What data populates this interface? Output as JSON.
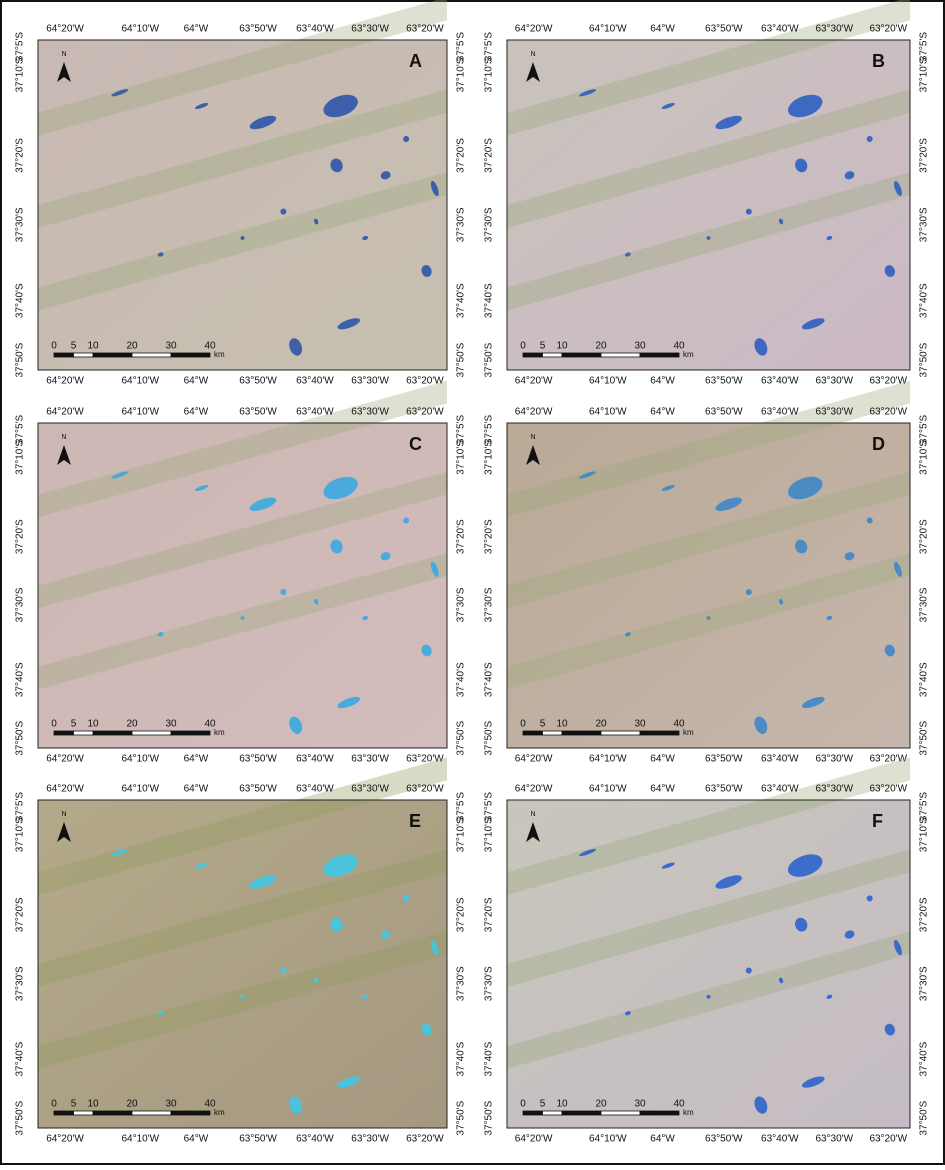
{
  "panels": [
    {
      "label": "A"
    },
    {
      "label": "B"
    },
    {
      "label": "C"
    },
    {
      "label": "D"
    },
    {
      "label": "E"
    },
    {
      "label": "F"
    }
  ],
  "longitudes": [
    "64°20'W",
    "64°10'W",
    "64°W",
    "63°50'W",
    "63°40'W",
    "63°30'W",
    "63°20'W"
  ],
  "latitudes": [
    "37°5'S",
    "37°10'S",
    "37°20'S",
    "37°30'S",
    "37°40'S",
    "37°50'S"
  ],
  "scale": {
    "labels": [
      "0",
      "5",
      "10",
      "20",
      "30",
      "40"
    ],
    "unit": "km"
  },
  "north": "N"
}
